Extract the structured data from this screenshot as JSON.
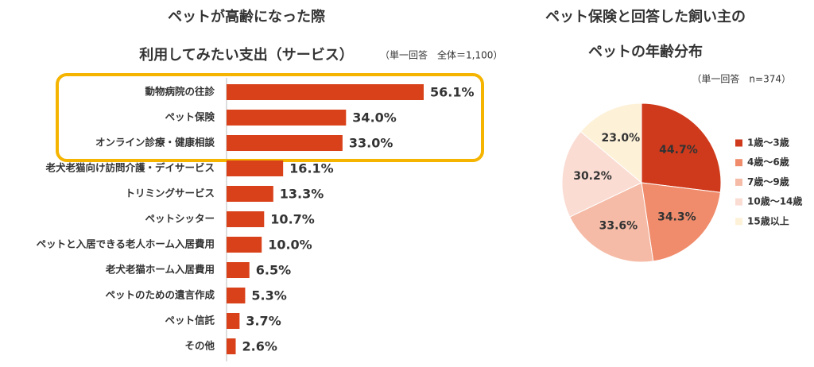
{
  "chart_data": [
    {
      "type": "hbar",
      "title_lines": [
        "ペットが高齢になった際",
        "利用してみたい支出（サービス）"
      ],
      "note": "（単一回答　全体＝1,100）",
      "categories": [
        "動物病院の往診",
        "ペット保険",
        "オンライン診療・健康相談",
        "老犬老猫向け訪問介護・デイサービス",
        "トリミングサービス",
        "ペットシッター",
        "ペットと入居できる老人ホーム入居費用",
        "老犬老猫ホーム入居費用",
        "ペットのための遺言作成",
        "ペット信託",
        "その他"
      ],
      "values": [
        56.1,
        34.0,
        33.0,
        16.1,
        13.3,
        10.7,
        10.0,
        6.5,
        5.3,
        3.7,
        2.6
      ],
      "value_labels": [
        "56.1%",
        "34.0%",
        "33.0%",
        "16.1%",
        "13.3%",
        "10.7%",
        "10.0%",
        "6.5%",
        "5.3%",
        "3.7%",
        "2.6%"
      ],
      "color": "#d9411a",
      "highlight_first": 3,
      "highlight_color": "#f5b400"
    },
    {
      "type": "pie",
      "title_lines": [
        "ペット保険と回答した飼い主の",
        "ペットの年齢分布"
      ],
      "note": "（単一回答　n=374）",
      "series": [
        {
          "name": "1歳～3歳",
          "color": "#cf3a1c"
        },
        {
          "name": "4歳～6歳",
          "color": "#f08c6c"
        },
        {
          "name": "7歳～9歳",
          "color": "#f5bba6"
        },
        {
          "name": "10歳～14歳",
          "color": "#fadcd3"
        },
        {
          "name": "15歳以上",
          "color": "#fdf1d8"
        }
      ],
      "values": [
        44.7,
        34.3,
        33.6,
        30.2,
        23.0
      ],
      "value_labels": [
        "44.7%",
        "34.3%",
        "33.6%",
        "30.2%",
        "23.0%"
      ],
      "legend": "right"
    }
  ]
}
